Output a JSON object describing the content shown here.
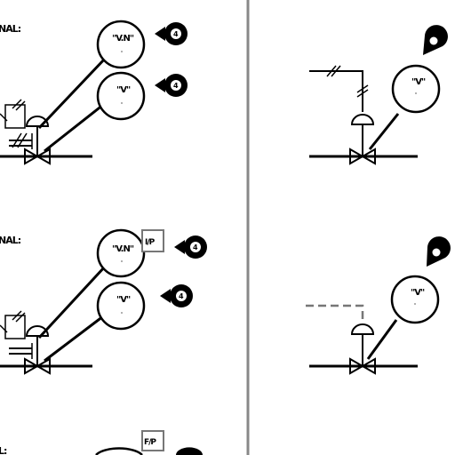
{
  "left_panel": {
    "row1": {
      "label": "NAL:",
      "instrument_top": "\"V.N\"",
      "instrument_bottom": "\"V\"",
      "badge_top": "4",
      "badge_bottom": "4"
    },
    "row2": {
      "label": "NAL:",
      "instrument_top": "\"V.N\"",
      "instrument_bottom": "\"V\"",
      "box_tag": "I/P",
      "badge_top": "4",
      "badge_bottom": "4"
    },
    "row3": {
      "label": "L:",
      "box_tag": "F/P"
    }
  },
  "right_panel": {
    "row1": {
      "instrument": "\"V\""
    },
    "row2": {
      "instrument": "\"V\""
    }
  },
  "colors": {
    "line": "#000000",
    "divider": "#888888",
    "box_border": "#777777"
  }
}
